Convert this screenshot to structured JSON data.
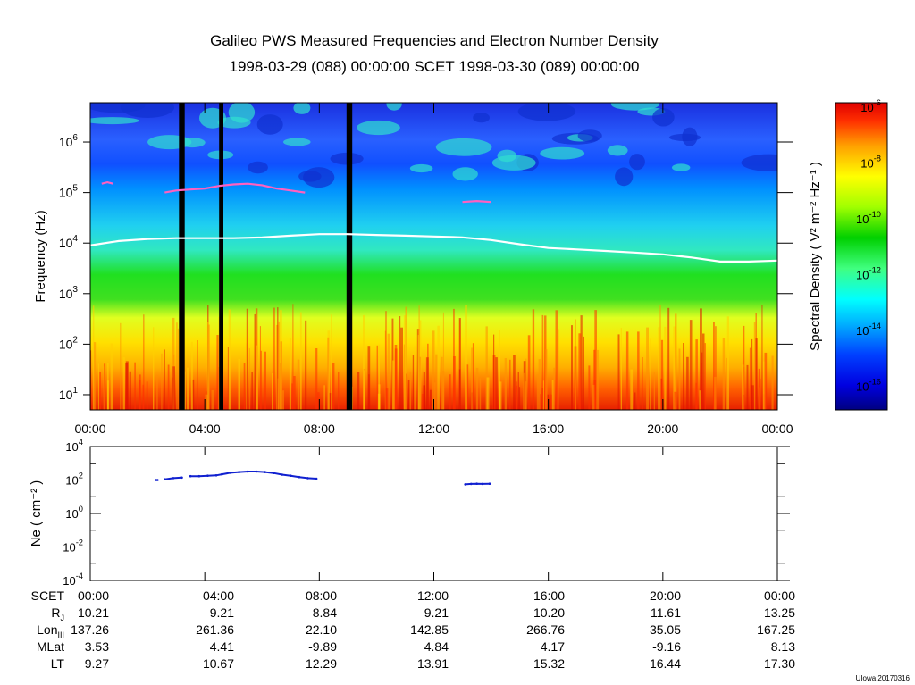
{
  "title": {
    "line1": "Galileo PWS Measured Frequencies and Electron Number Density",
    "line2": "1998-03-29 (088) 00:00:00 SCET 1998-03-30 (089) 00:00:00"
  },
  "credit": "UIowa 20170316",
  "colors": {
    "background": "#ffffff",
    "density_trace": "#1020d0",
    "fuh_trace": "#ff60c0",
    "fce_trace": "#ffffff",
    "datagap": "#000000"
  },
  "chart_data": [
    {
      "type": "heatmap",
      "name": "spectrogram",
      "ylabel": "Frequency (Hz)",
      "x_range_hours": [
        0,
        24
      ],
      "y_range_hz": [
        5,
        6000000
      ],
      "yscale": "log",
      "x_ticks": [
        "00:00",
        "04:00",
        "08:00",
        "12:00",
        "16:00",
        "20:00",
        "00:00"
      ],
      "y_ticks": [
        {
          "base": "10",
          "exp": "1",
          "value": 10
        },
        {
          "base": "10",
          "exp": "2",
          "value": 100
        },
        {
          "base": "10",
          "exp": "3",
          "value": 1000
        },
        {
          "base": "10",
          "exp": "4",
          "value": 10000
        },
        {
          "base": "10",
          "exp": "5",
          "value": 100000
        },
        {
          "base": "10",
          "exp": "6",
          "value": 1000000
        }
      ],
      "data_gaps_hours": [
        [
          3.1,
          3.3
        ],
        [
          4.5,
          4.65
        ],
        [
          8.95,
          9.15
        ]
      ],
      "electron_cyclotron_line": {
        "hours": [
          0,
          1,
          2,
          3,
          4,
          5,
          6,
          7,
          8,
          9,
          10,
          11,
          12,
          13,
          14,
          15,
          16,
          17,
          18,
          19,
          20,
          21,
          22,
          23,
          24
        ],
        "freq_hz": [
          9000,
          11000,
          12000,
          12500,
          12500,
          12500,
          13000,
          14000,
          15000,
          15000,
          14500,
          14000,
          13500,
          13000,
          11500,
          9500,
          8000,
          7500,
          7000,
          6500,
          6000,
          5200,
          4300,
          4300,
          4500
        ]
      },
      "upper_hybrid_segments": [
        {
          "hours": [
            0.4,
            0.6,
            0.8
          ],
          "freq_hz": [
            150000,
            160000,
            150000
          ]
        },
        {
          "hours": [
            2.6,
            3.0,
            3.5,
            4.0,
            4.5,
            5.0,
            5.5,
            6.0,
            6.5,
            7.0,
            7.5
          ],
          "freq_hz": [
            100000,
            110000,
            115000,
            120000,
            135000,
            145000,
            150000,
            140000,
            120000,
            110000,
            100000
          ]
        },
        {
          "hours": [
            13.0,
            13.5,
            14.0
          ],
          "freq_hz": [
            65000,
            68000,
            65000
          ]
        }
      ]
    },
    {
      "type": "colorbar",
      "name": "spectral-density",
      "label": "Spectral Density ( V² m⁻² Hz⁻¹ )",
      "range_log": [
        -17,
        -6
      ],
      "ticks": [
        {
          "base": "10",
          "exp": "-6",
          "value": -6
        },
        {
          "base": "10",
          "exp": "-8",
          "value": -8
        },
        {
          "base": "10",
          "exp": "-10",
          "value": -10
        },
        {
          "base": "10",
          "exp": "-12",
          "value": -12
        },
        {
          "base": "10",
          "exp": "-14",
          "value": -14
        },
        {
          "base": "10",
          "exp": "-16",
          "value": -16
        }
      ]
    },
    {
      "type": "scatter",
      "name": "electron-density",
      "ylabel": "Ne ( cm⁻² )",
      "ylim_log": [
        -4,
        4
      ],
      "x_range_hours": [
        0,
        24
      ],
      "y_ticks": [
        {
          "base": "10",
          "exp": "4",
          "value": 4
        },
        {
          "base": "10",
          "exp": "2",
          "value": 2
        },
        {
          "base": "10",
          "exp": "0",
          "value": 0
        },
        {
          "base": "10",
          "exp": "-2",
          "value": -2
        },
        {
          "base": "10",
          "exp": "-4",
          "value": -4
        }
      ],
      "series": [
        {
          "hours": [
            2.3,
            2.35
          ],
          "density": [
            100,
            100
          ]
        },
        {
          "hours": [
            2.6,
            2.9,
            3.2
          ],
          "density": [
            110,
            130,
            140
          ]
        },
        {
          "hours": [
            3.5,
            3.8,
            4.1,
            4.4,
            4.6,
            4.9,
            5.2,
            5.5,
            5.8,
            6.1,
            6.4,
            6.7,
            7.0,
            7.3,
            7.6,
            7.9
          ],
          "density": [
            170,
            170,
            180,
            190,
            220,
            270,
            300,
            320,
            320,
            300,
            260,
            210,
            180,
            150,
            130,
            120
          ]
        },
        {
          "hours": [
            13.1,
            13.3,
            13.5,
            13.7,
            13.95
          ],
          "density": [
            55,
            58,
            60,
            58,
            60
          ]
        }
      ]
    }
  ],
  "ephemeris": {
    "rows": [
      {
        "label": "SCET",
        "sub": "",
        "values": [
          "00:00",
          "04:00",
          "08:00",
          "12:00",
          "16:00",
          "20:00",
          "00:00"
        ]
      },
      {
        "label": "R",
        "sub": "J",
        "values": [
          "10.21",
          "9.21",
          "8.84",
          "9.21",
          "10.20",
          "11.61",
          "13.25"
        ]
      },
      {
        "label": "Lon",
        "sub": "III",
        "values": [
          "137.26",
          "261.36",
          "22.10",
          "142.85",
          "266.76",
          "35.05",
          "167.25"
        ]
      },
      {
        "label": "MLat",
        "sub": "",
        "values": [
          "3.53",
          "4.41",
          "-9.89",
          "4.84",
          "4.17",
          "-9.16",
          "8.13"
        ]
      },
      {
        "label": "LT",
        "sub": "",
        "values": [
          "9.27",
          "10.67",
          "12.29",
          "13.91",
          "15.32",
          "16.44",
          "17.30"
        ]
      }
    ]
  }
}
